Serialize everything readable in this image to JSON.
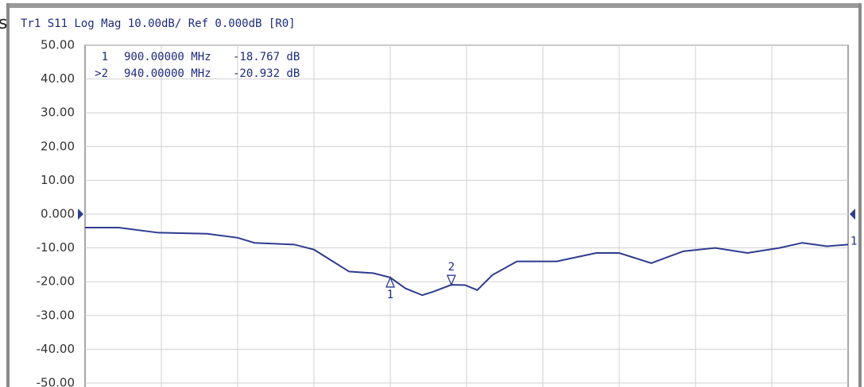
{
  "chart_data": {
    "type": "line",
    "title": "Tr1 S11 Log Mag 10.00dB/ Ref 0.000dB [R0]",
    "fragment": "s",
    "trace_label": "1",
    "x": [
      700,
      722,
      748,
      780,
      800,
      811,
      837,
      850,
      873,
      889,
      900,
      910,
      921,
      928,
      940,
      949,
      957,
      967,
      983,
      1009,
      1035,
      1050,
      1071,
      1092,
      1113,
      1134,
      1155,
      1170,
      1186,
      1200
    ],
    "series": [
      {
        "name": "S11",
        "color": "#2e3b8f",
        "values": [
          -4,
          -4,
          -5.5,
          -5.8,
          -7,
          -8.5,
          -9,
          -10.5,
          -17,
          -17.5,
          -18.767,
          -22,
          -24,
          -23,
          -20.932,
          -21,
          -22.5,
          -18,
          -14,
          -14,
          -11.5,
          -11.5,
          -14.5,
          -11,
          -10,
          -11.5,
          -10,
          -8.5,
          -9.5,
          -9
        ]
      }
    ],
    "markers": [
      {
        "name": "1",
        "readout_name": "1",
        "freq": "900.00000 MHz",
        "level": "-18.767 dB",
        "x": 900,
        "y": -18.767
      },
      {
        "name": "2",
        "readout_name": ">2",
        "freq": "940.00000 MHz",
        "level": "-20.932 dB",
        "x": 940,
        "y": -20.932
      }
    ],
    "xlim": [
      700,
      1200
    ],
    "ylim": [
      -50,
      50
    ],
    "yticks": [
      {
        "value": 50,
        "label": "50.00"
      },
      {
        "value": 40,
        "label": "40.00"
      },
      {
        "value": 30,
        "label": "30.00"
      },
      {
        "value": 20,
        "label": "20.00"
      },
      {
        "value": 10,
        "label": "10.00"
      },
      {
        "value": 0,
        "label": "0.000"
      },
      {
        "value": -10,
        "label": "-10.00"
      },
      {
        "value": -20,
        "label": "-20.00"
      },
      {
        "value": -30,
        "label": "-30.00"
      },
      {
        "value": -40,
        "label": "-40.00"
      },
      {
        "value": -50,
        "label": "-50.00"
      }
    ],
    "grid": true
  }
}
